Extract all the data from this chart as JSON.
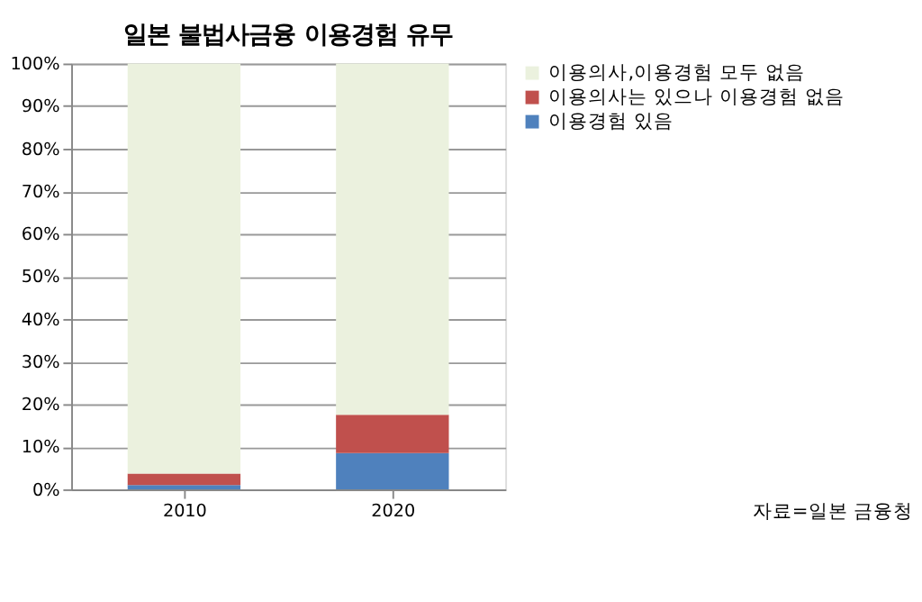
{
  "chart_data": {
    "type": "bar",
    "title": "일본 불법사금융 이용경험 유무",
    "categories": [
      "2010",
      "2020"
    ],
    "stacked": true,
    "series": [
      {
        "name": "이용경험 있음",
        "color": "#4f81bd",
        "values": [
          1,
          8.5
        ]
      },
      {
        "name": "이용의사는 있으나 이용경험 없음",
        "color": "#c0504d",
        "values": [
          2.7,
          9
        ]
      },
      {
        "name": "이용의사,이용경험 모두 없음",
        "color": "#ebf1de",
        "values": [
          96.3,
          82.5
        ]
      }
    ],
    "ylim": [
      0,
      100
    ],
    "yticks": [
      {
        "value": 0,
        "label": "0%"
      },
      {
        "value": 10,
        "label": "10%"
      },
      {
        "value": 20,
        "label": "20%"
      },
      {
        "value": 30,
        "label": "30%"
      },
      {
        "value": 40,
        "label": "40%"
      },
      {
        "value": 50,
        "label": "50%"
      },
      {
        "value": 60,
        "label": "60%"
      },
      {
        "value": 70,
        "label": "70%"
      },
      {
        "value": 80,
        "label": "80%"
      },
      {
        "value": 90,
        "label": "90%"
      },
      {
        "value": 100,
        "label": "100%"
      }
    ],
    "grid": "y",
    "legend": "right",
    "annotations": [
      "자료=일본 금융청"
    ]
  }
}
